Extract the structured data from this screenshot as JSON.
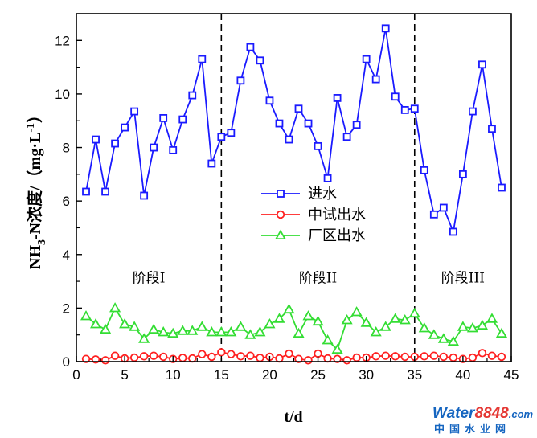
{
  "chart_data": {
    "type": "line",
    "xlabel": "t/d",
    "ylabel_main": "NH",
    "ylabel_sub": "3",
    "ylabel_rest": "-N浓度/（mg·L",
    "ylabel_sup": "-1",
    "ylabel_end": "）",
    "xlim": [
      0,
      45
    ],
    "ylim": [
      0,
      13
    ],
    "xticks": [
      0,
      5,
      10,
      15,
      20,
      25,
      30,
      35,
      40,
      45
    ],
    "yticks": [
      0,
      2,
      4,
      6,
      8,
      10,
      12
    ],
    "x": [
      1,
      2,
      3,
      4,
      5,
      6,
      7,
      8,
      9,
      10,
      11,
      12,
      13,
      14,
      15,
      16,
      17,
      18,
      19,
      20,
      21,
      22,
      23,
      24,
      25,
      26,
      27,
      28,
      29,
      30,
      31,
      32,
      33,
      34,
      35,
      36,
      37,
      38,
      39,
      40,
      41,
      42,
      43,
      44
    ],
    "series": [
      {
        "name": "进水",
        "color": "#1a1aff",
        "marker": "square",
        "values": [
          6.35,
          8.3,
          6.35,
          8.15,
          8.75,
          9.35,
          6.2,
          8.0,
          9.1,
          7.9,
          9.05,
          9.95,
          11.3,
          7.4,
          8.4,
          8.55,
          10.5,
          11.75,
          11.25,
          9.75,
          8.9,
          8.3,
          9.45,
          8.9,
          8.05,
          6.85,
          9.85,
          8.4,
          8.85,
          11.3,
          10.55,
          12.45,
          9.9,
          9.4,
          9.45,
          7.15,
          5.5,
          5.75,
          4.85,
          7.0,
          9.35,
          11.1,
          8.7,
          6.5
        ]
      },
      {
        "name": "中试出水",
        "color": "#ff2020",
        "marker": "circle",
        "values": [
          0.1,
          0.08,
          0.05,
          0.22,
          0.12,
          0.15,
          0.2,
          0.22,
          0.18,
          0.1,
          0.14,
          0.12,
          0.28,
          0.18,
          0.35,
          0.28,
          0.2,
          0.22,
          0.14,
          0.18,
          0.12,
          0.3,
          0.1,
          0.05,
          0.3,
          0.12,
          0.1,
          0.05,
          0.15,
          0.15,
          0.2,
          0.22,
          0.2,
          0.18,
          0.18,
          0.2,
          0.22,
          0.18,
          0.15,
          0.1,
          0.15,
          0.32,
          0.22,
          0.18
        ]
      },
      {
        "name": "厂区出水",
        "color": "#33dd33",
        "marker": "triangle",
        "values": [
          1.7,
          1.4,
          1.2,
          2.0,
          1.4,
          1.3,
          0.85,
          1.2,
          1.1,
          1.05,
          1.15,
          1.15,
          1.3,
          1.1,
          1.1,
          1.1,
          1.3,
          1.0,
          1.1,
          1.4,
          1.6,
          1.95,
          1.05,
          1.7,
          1.5,
          0.8,
          0.45,
          1.55,
          1.85,
          1.45,
          1.1,
          1.3,
          1.6,
          1.55,
          1.8,
          1.25,
          1.0,
          0.85,
          0.75,
          1.3,
          1.25,
          1.35,
          1.6,
          1.05
        ]
      }
    ],
    "dividers": [
      15,
      35
    ],
    "stages": [
      {
        "label": "阶段I",
        "x": 7.5,
        "y": 2.95
      },
      {
        "label": "阶段II",
        "x": 25,
        "y": 2.95
      },
      {
        "label": "阶段III",
        "x": 40,
        "y": 2.95
      }
    ],
    "legend_position": "center-right",
    "grid": false
  },
  "watermark": {
    "word": "Water",
    "number": "8848",
    "domain": ".com",
    "subtitle": "中国水业网"
  }
}
